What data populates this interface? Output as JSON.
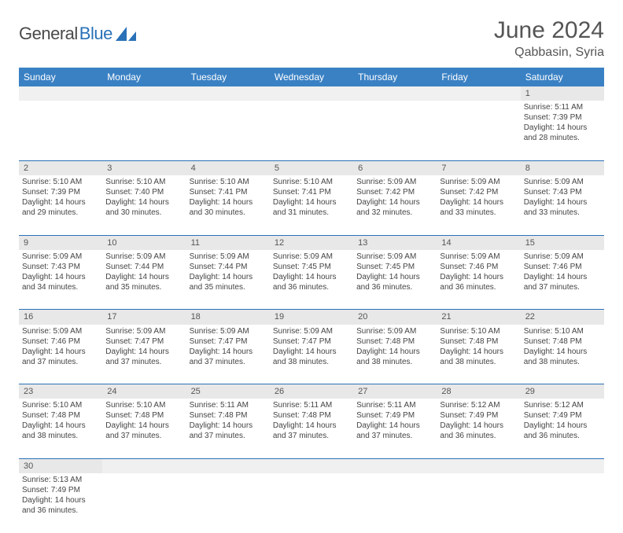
{
  "branding": {
    "logo_part1": "General",
    "logo_part2": "Blue",
    "logo_color1": "#4a4a4a",
    "logo_color2": "#2a71b8"
  },
  "header": {
    "month_title": "June 2024",
    "location": "Qabbasin, Syria"
  },
  "colors": {
    "header_bg": "#3a81c4",
    "header_text": "#ffffff",
    "row_divider": "#2a71b8",
    "daynum_bg": "#e8e8e8",
    "empty_bg": "#f0f0f0",
    "body_text": "#444"
  },
  "weekdays": [
    "Sunday",
    "Monday",
    "Tuesday",
    "Wednesday",
    "Thursday",
    "Friday",
    "Saturday"
  ],
  "weeks": [
    [
      null,
      null,
      null,
      null,
      null,
      null,
      {
        "day": "1",
        "sunrise": "Sunrise: 5:11 AM",
        "sunset": "Sunset: 7:39 PM",
        "daylight": "Daylight: 14 hours and 28 minutes."
      }
    ],
    [
      {
        "day": "2",
        "sunrise": "Sunrise: 5:10 AM",
        "sunset": "Sunset: 7:39 PM",
        "daylight": "Daylight: 14 hours and 29 minutes."
      },
      {
        "day": "3",
        "sunrise": "Sunrise: 5:10 AM",
        "sunset": "Sunset: 7:40 PM",
        "daylight": "Daylight: 14 hours and 30 minutes."
      },
      {
        "day": "4",
        "sunrise": "Sunrise: 5:10 AM",
        "sunset": "Sunset: 7:41 PM",
        "daylight": "Daylight: 14 hours and 30 minutes."
      },
      {
        "day": "5",
        "sunrise": "Sunrise: 5:10 AM",
        "sunset": "Sunset: 7:41 PM",
        "daylight": "Daylight: 14 hours and 31 minutes."
      },
      {
        "day": "6",
        "sunrise": "Sunrise: 5:09 AM",
        "sunset": "Sunset: 7:42 PM",
        "daylight": "Daylight: 14 hours and 32 minutes."
      },
      {
        "day": "7",
        "sunrise": "Sunrise: 5:09 AM",
        "sunset": "Sunset: 7:42 PM",
        "daylight": "Daylight: 14 hours and 33 minutes."
      },
      {
        "day": "8",
        "sunrise": "Sunrise: 5:09 AM",
        "sunset": "Sunset: 7:43 PM",
        "daylight": "Daylight: 14 hours and 33 minutes."
      }
    ],
    [
      {
        "day": "9",
        "sunrise": "Sunrise: 5:09 AM",
        "sunset": "Sunset: 7:43 PM",
        "daylight": "Daylight: 14 hours and 34 minutes."
      },
      {
        "day": "10",
        "sunrise": "Sunrise: 5:09 AM",
        "sunset": "Sunset: 7:44 PM",
        "daylight": "Daylight: 14 hours and 35 minutes."
      },
      {
        "day": "11",
        "sunrise": "Sunrise: 5:09 AM",
        "sunset": "Sunset: 7:44 PM",
        "daylight": "Daylight: 14 hours and 35 minutes."
      },
      {
        "day": "12",
        "sunrise": "Sunrise: 5:09 AM",
        "sunset": "Sunset: 7:45 PM",
        "daylight": "Daylight: 14 hours and 36 minutes."
      },
      {
        "day": "13",
        "sunrise": "Sunrise: 5:09 AM",
        "sunset": "Sunset: 7:45 PM",
        "daylight": "Daylight: 14 hours and 36 minutes."
      },
      {
        "day": "14",
        "sunrise": "Sunrise: 5:09 AM",
        "sunset": "Sunset: 7:46 PM",
        "daylight": "Daylight: 14 hours and 36 minutes."
      },
      {
        "day": "15",
        "sunrise": "Sunrise: 5:09 AM",
        "sunset": "Sunset: 7:46 PM",
        "daylight": "Daylight: 14 hours and 37 minutes."
      }
    ],
    [
      {
        "day": "16",
        "sunrise": "Sunrise: 5:09 AM",
        "sunset": "Sunset: 7:46 PM",
        "daylight": "Daylight: 14 hours and 37 minutes."
      },
      {
        "day": "17",
        "sunrise": "Sunrise: 5:09 AM",
        "sunset": "Sunset: 7:47 PM",
        "daylight": "Daylight: 14 hours and 37 minutes."
      },
      {
        "day": "18",
        "sunrise": "Sunrise: 5:09 AM",
        "sunset": "Sunset: 7:47 PM",
        "daylight": "Daylight: 14 hours and 37 minutes."
      },
      {
        "day": "19",
        "sunrise": "Sunrise: 5:09 AM",
        "sunset": "Sunset: 7:47 PM",
        "daylight": "Daylight: 14 hours and 38 minutes."
      },
      {
        "day": "20",
        "sunrise": "Sunrise: 5:09 AM",
        "sunset": "Sunset: 7:48 PM",
        "daylight": "Daylight: 14 hours and 38 minutes."
      },
      {
        "day": "21",
        "sunrise": "Sunrise: 5:10 AM",
        "sunset": "Sunset: 7:48 PM",
        "daylight": "Daylight: 14 hours and 38 minutes."
      },
      {
        "day": "22",
        "sunrise": "Sunrise: 5:10 AM",
        "sunset": "Sunset: 7:48 PM",
        "daylight": "Daylight: 14 hours and 38 minutes."
      }
    ],
    [
      {
        "day": "23",
        "sunrise": "Sunrise: 5:10 AM",
        "sunset": "Sunset: 7:48 PM",
        "daylight": "Daylight: 14 hours and 38 minutes."
      },
      {
        "day": "24",
        "sunrise": "Sunrise: 5:10 AM",
        "sunset": "Sunset: 7:48 PM",
        "daylight": "Daylight: 14 hours and 37 minutes."
      },
      {
        "day": "25",
        "sunrise": "Sunrise: 5:11 AM",
        "sunset": "Sunset: 7:48 PM",
        "daylight": "Daylight: 14 hours and 37 minutes."
      },
      {
        "day": "26",
        "sunrise": "Sunrise: 5:11 AM",
        "sunset": "Sunset: 7:48 PM",
        "daylight": "Daylight: 14 hours and 37 minutes."
      },
      {
        "day": "27",
        "sunrise": "Sunrise: 5:11 AM",
        "sunset": "Sunset: 7:49 PM",
        "daylight": "Daylight: 14 hours and 37 minutes."
      },
      {
        "day": "28",
        "sunrise": "Sunrise: 5:12 AM",
        "sunset": "Sunset: 7:49 PM",
        "daylight": "Daylight: 14 hours and 36 minutes."
      },
      {
        "day": "29",
        "sunrise": "Sunrise: 5:12 AM",
        "sunset": "Sunset: 7:49 PM",
        "daylight": "Daylight: 14 hours and 36 minutes."
      }
    ],
    [
      {
        "day": "30",
        "sunrise": "Sunrise: 5:13 AM",
        "sunset": "Sunset: 7:49 PM",
        "daylight": "Daylight: 14 hours and 36 minutes."
      },
      null,
      null,
      null,
      null,
      null,
      null
    ]
  ]
}
